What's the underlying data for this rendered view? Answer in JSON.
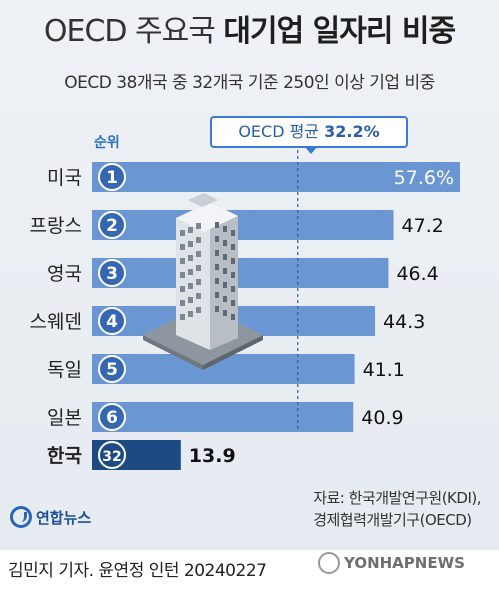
{
  "title": {
    "part1": "OECD 주요국 ",
    "part2": "대기업 일자리 비중"
  },
  "subtitle": "OECD 38개국 중 32개국 기준 250인 이상 기업 비중",
  "rank_header": "순위",
  "average": {
    "label": "OECD 평균 ",
    "value_text": "32.2%"
  },
  "chart_data": {
    "type": "bar",
    "title": "OECD 주요국 대기업 일자리 비중",
    "subtitle": "OECD 38개국 중 32개국 기준 250인 이상 기업 비중",
    "orientation": "horizontal",
    "unit": "%",
    "reference_line": {
      "label": "OECD 평균",
      "value": 32.2
    },
    "categories": [
      "미국",
      "프랑스",
      "영국",
      "스웨덴",
      "독일",
      "일본",
      "한국"
    ],
    "ranks": [
      "1",
      "2",
      "3",
      "4",
      "5",
      "6",
      "32"
    ],
    "values": [
      57.6,
      47.2,
      46.4,
      44.3,
      41.1,
      40.9,
      13.9
    ],
    "value_labels": [
      "57.6%",
      "47.2",
      "46.4",
      "44.3",
      "41.1",
      "40.9",
      "13.9"
    ],
    "highlight_category": "한국",
    "colors": {
      "bar": "#6a97d4",
      "highlight_bar": "#1d4a82",
      "rank_circle": "#3566b0",
      "rank_highlight": "#1d4a82"
    }
  },
  "source": {
    "line1": "자료: 한국개발연구원(KDI),",
    "line2": "경제협력개발기구(OECD)"
  },
  "logo_text": "연합뉴스",
  "credit": "김민지 기자. 윤연정 인턴  20240227",
  "watermark": "YONHAPNEWS"
}
